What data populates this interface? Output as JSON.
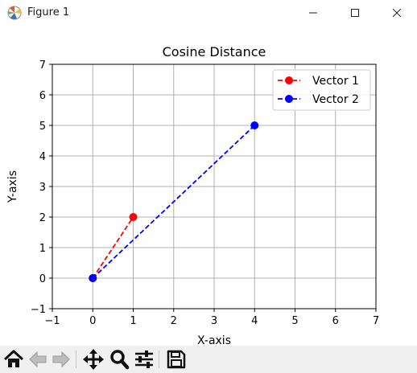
{
  "window": {
    "title": "Figure 1",
    "icons": [
      "matplotlib-logo-icon",
      "minimize-icon",
      "maximize-icon",
      "close-icon"
    ]
  },
  "toolbar": {
    "buttons": [
      "home-icon",
      "back-arrow-icon",
      "forward-arrow-icon",
      "pan-icon",
      "zoom-icon",
      "configure-subplots-icon",
      "save-icon"
    ]
  },
  "colors": {
    "vector1": "#ff0000",
    "vector2": "#0000ff",
    "grid": "#b0b0b0",
    "toolbar_bg": "#f0f0f0"
  },
  "chart_data": {
    "type": "line",
    "title": "Cosine Distance",
    "xlabel": "X-axis",
    "ylabel": "Y-axis",
    "xlim": [
      -1,
      7
    ],
    "ylim": [
      -1,
      7
    ],
    "xticks": [
      -1,
      0,
      1,
      2,
      3,
      4,
      5,
      6,
      7
    ],
    "yticks": [
      -1,
      0,
      1,
      2,
      3,
      4,
      5,
      6,
      7
    ],
    "grid": true,
    "legend_position": "top-right",
    "series": [
      {
        "name": "Vector 1",
        "x": [
          0,
          1
        ],
        "y": [
          0,
          2
        ],
        "color": "#ff0000",
        "linestyle": "dashed",
        "marker": "circle"
      },
      {
        "name": "Vector 2",
        "x": [
          0,
          4
        ],
        "y": [
          0,
          5
        ],
        "color": "#0000ff",
        "linestyle": "dashed",
        "marker": "circle"
      }
    ]
  }
}
